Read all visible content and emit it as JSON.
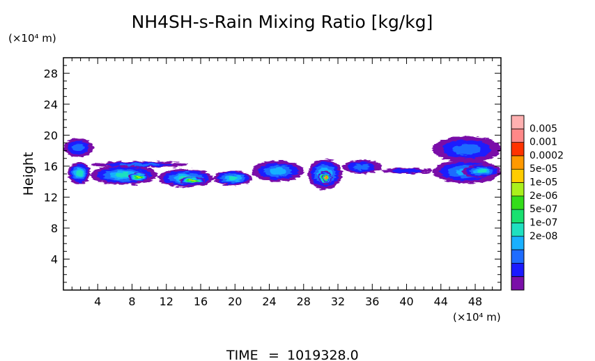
{
  "chart_data": {
    "type": "heatmap",
    "title": "NH4SH-s-Rain Mixing Ratio [kg/kg]",
    "xlabel": "(×10⁴ m)",
    "ylabel": "Height",
    "y_unit": "(×10⁴ m)",
    "xlim": [
      0,
      51
    ],
    "ylim": [
      0,
      30
    ],
    "x_ticks": [
      "4",
      "8",
      "12",
      "16",
      "20",
      "24",
      "28",
      "32",
      "36",
      "40",
      "44",
      "48"
    ],
    "y_ticks": [
      "4",
      "8",
      "12",
      "16",
      "20",
      "24",
      "28"
    ],
    "colorbar": {
      "labels": [
        "0.005",
        "0.001",
        "0.0002",
        "5e-05",
        "1e-05",
        "2e-06",
        "5e-07",
        "1e-07",
        "2e-08"
      ],
      "colors": [
        "#7a0fa8",
        "#1a1aff",
        "#1e6cff",
        "#19b0ff",
        "#1fe0c0",
        "#19e070",
        "#33dd1a",
        "#aaf01c",
        "#ffcc00",
        "#ff9900",
        "#ff3300",
        "#ff8888",
        "#ffb0b0"
      ]
    },
    "blobs": [
      {
        "x": [
          0,
          3.5
        ],
        "y": [
          17.2,
          19.6
        ],
        "level": 2
      },
      {
        "x": [
          0.5,
          3.2
        ],
        "y": [
          13.7,
          16.5
        ],
        "level": 4
      },
      {
        "x": [
          3.2,
          14.5
        ],
        "y": [
          15.8,
          16.6
        ],
        "level": 2
      },
      {
        "x": [
          3.2,
          11
        ],
        "y": [
          13.6,
          16.1
        ],
        "level": 4
      },
      {
        "x": [
          7.5,
          10
        ],
        "y": [
          14,
          15.2
        ],
        "level": 7
      },
      {
        "x": [
          11,
          17.5
        ],
        "y": [
          13.3,
          15.6
        ],
        "level": 4
      },
      {
        "x": [
          13.5,
          16.5
        ],
        "y": [
          13.7,
          14.6
        ],
        "level": 8
      },
      {
        "x": [
          17.5,
          22
        ],
        "y": [
          13.5,
          15.4
        ],
        "level": 4
      },
      {
        "x": [
          22,
          28
        ],
        "y": [
          14,
          16.7
        ],
        "level": 3
      },
      {
        "x": [
          28.5,
          32.5
        ],
        "y": [
          13,
          16.9
        ],
        "level": 4
      },
      {
        "x": [
          29.7,
          31.3
        ],
        "y": [
          13.6,
          15.4
        ],
        "level": 9
      },
      {
        "x": [
          30.2,
          31
        ],
        "y": [
          14,
          14.9
        ],
        "level": 11
      },
      {
        "x": [
          32.5,
          37
        ],
        "y": [
          15,
          16.8
        ],
        "level": 2
      },
      {
        "x": [
          37,
          43
        ],
        "y": [
          15,
          15.8
        ],
        "level": 1
      },
      {
        "x": [
          43,
          51
        ],
        "y": [
          16.5,
          19.9
        ],
        "level": 2
      },
      {
        "x": [
          43,
          51
        ],
        "y": [
          13.8,
          16.8
        ],
        "level": 3
      },
      {
        "x": [
          46.5,
          51
        ],
        "y": [
          14.5,
          16.2
        ],
        "level": 4
      }
    ],
    "grid": false,
    "legend": "right"
  },
  "footer": {
    "time_label": "TIME",
    "time_equals": "=",
    "time_value": "1019328.0"
  }
}
